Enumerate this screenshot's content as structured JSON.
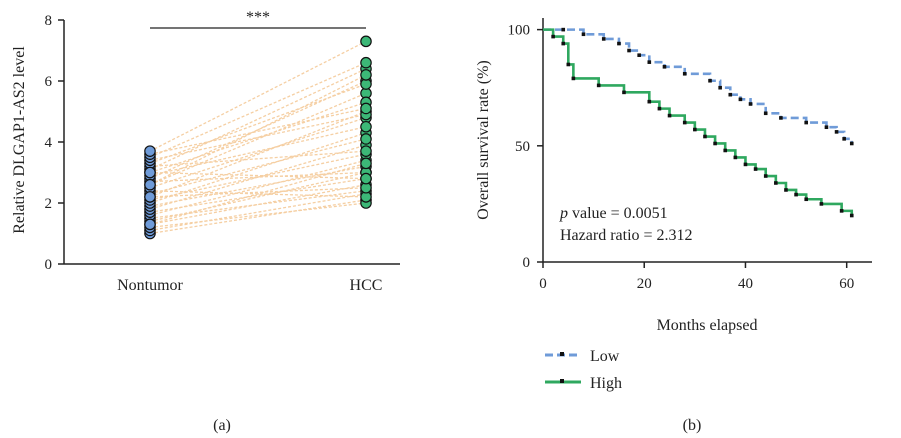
{
  "chart_data": [
    {
      "panel_label": "(a)",
      "type": "scatter",
      "ylabel": "Relative DLGAP1-AS2 level",
      "xlabel": "",
      "categories": [
        "Nontumor",
        "HCC"
      ],
      "yticks": [
        "0",
        "2",
        "4",
        "6",
        "8"
      ],
      "ylim": [
        0,
        8
      ],
      "significance": "***",
      "colors": {
        "Nontumor": "#6f9bd8",
        "HCC": "#3cb877",
        "paired_lines": "#f5cfa3"
      },
      "paired_values": [
        [
          1.0,
          2.1
        ],
        [
          1.1,
          2.3
        ],
        [
          1.2,
          2.0
        ],
        [
          1.3,
          2.6
        ],
        [
          1.4,
          3.0
        ],
        [
          1.5,
          2.4
        ],
        [
          1.6,
          3.4
        ],
        [
          1.7,
          2.8
        ],
        [
          1.8,
          3.9
        ],
        [
          1.9,
          3.2
        ],
        [
          2.0,
          4.3
        ],
        [
          2.1,
          3.6
        ],
        [
          2.2,
          5.0
        ],
        [
          2.3,
          4.1
        ],
        [
          2.4,
          2.2
        ],
        [
          2.5,
          4.8
        ],
        [
          2.6,
          5.6
        ],
        [
          2.7,
          3.0
        ],
        [
          2.8,
          6.0
        ],
        [
          2.9,
          4.5
        ],
        [
          3.0,
          5.3
        ],
        [
          3.1,
          6.4
        ],
        [
          3.2,
          3.7
        ],
        [
          3.3,
          5.9
        ],
        [
          3.4,
          4.9
        ],
        [
          3.5,
          6.6
        ],
        [
          3.6,
          5.1
        ],
        [
          3.7,
          7.3
        ],
        [
          2.2,
          2.5
        ],
        [
          1.3,
          3.3
        ],
        [
          2.6,
          6.2
        ],
        [
          3.0,
          2.8
        ]
      ]
    },
    {
      "panel_label": "(b)",
      "type": "line",
      "xlabel": "Months elapsed",
      "ylabel": "Overall survival rate (%)",
      "xlim": [
        0,
        65
      ],
      "ylim": [
        0,
        105
      ],
      "xticks": [
        "0",
        "20",
        "40",
        "60"
      ],
      "yticks": [
        "0",
        "50",
        "100"
      ],
      "annotation": {
        "p_symbol": "p",
        "p_text": " value = 0.0051",
        "hazard_text": "Hazard ratio = 2.312"
      },
      "legend_position": "bottom-left",
      "series": [
        {
          "name": "Low",
          "color": "#6f9bd8",
          "dash": true,
          "x": [
            0,
            4,
            8,
            12,
            15,
            17,
            19,
            21,
            24,
            28,
            33,
            35,
            37,
            39,
            41,
            44,
            47,
            52,
            56,
            58,
            59.5,
            61
          ],
          "y": [
            100,
            100,
            98,
            96,
            94,
            91,
            89,
            86,
            84,
            81,
            78,
            75,
            72,
            70,
            68,
            64,
            62,
            60,
            58,
            56,
            53,
            51
          ]
        },
        {
          "name": "High",
          "color": "#2fa85f",
          "dash": false,
          "x": [
            0,
            2,
            4,
            5,
            6,
            11,
            16,
            21,
            23,
            25,
            28,
            30,
            32,
            34,
            36,
            38,
            40,
            42,
            44,
            46,
            48,
            50,
            52,
            55,
            59,
            61
          ],
          "y": [
            100,
            97,
            94,
            85,
            79,
            76,
            73,
            69,
            66,
            63,
            60,
            57,
            54,
            51,
            48,
            45,
            42,
            40,
            37,
            34,
            31,
            29,
            27,
            25,
            22,
            20
          ]
        }
      ]
    }
  ]
}
